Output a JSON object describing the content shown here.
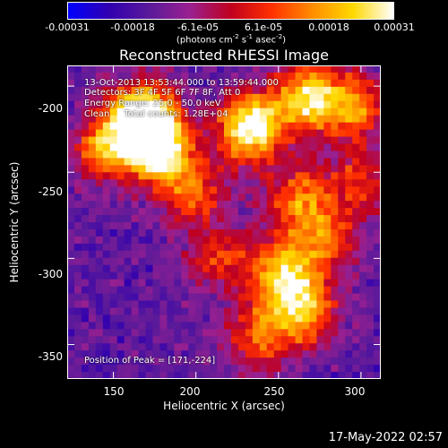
{
  "colorbar": {
    "tick_labels": [
      "-0.00031",
      "-0.00018",
      "-6.1e-05",
      "6.1e-05",
      "0.00018",
      "0.00031"
    ],
    "unit_prefix": "(photons cm",
    "unit_exp1": "-2",
    "unit_mid1": " s",
    "unit_exp2": "-1",
    "unit_mid2": " asec",
    "unit_exp3": "-2",
    "unit_suffix": ")",
    "range": [
      -0.00031,
      0.00031
    ]
  },
  "info_lines": {
    "time_range": "13-Oct-2013 13:53:44.000 to 13:59:44.000",
    "detectors": "Detectors: 3F 4F 5F 6F 7F 8F, Att 0",
    "energy": "Energy Range: 25.0 - 50.0 keV",
    "clean": "Clean     Total counts: 1.28E+04",
    "peak": "Position of Peak = [171,-224]"
  },
  "chart_data": {
    "type": "heatmap",
    "title": "Reconstructed RHESSI Image",
    "xlabel": "Heliocentric X (arcsec)",
    "ylabel": "Heliocentric Y (arcsec)",
    "xlim": [
      122,
      312
    ],
    "ylim": [
      -370,
      -188
    ],
    "xticks": [
      "150",
      "200",
      "250",
      "300"
    ],
    "yticks": [
      "-200",
      "-250",
      "-300",
      "-350"
    ],
    "peak_position": [
      171,
      -224
    ],
    "colormap": [
      "#0000ff",
      "#3000b0",
      "#5a1a9a",
      "#9a2090",
      "#c0001f",
      "#ff3000",
      "#ff8c00",
      "#ffd800",
      "#ffffff"
    ],
    "hotspots": [
      {
        "x": 168,
        "y": -218,
        "amp": 1.0
      },
      {
        "x": 178,
        "y": -238,
        "amp": 0.85
      },
      {
        "x": 233,
        "y": -224,
        "amp": 0.95
      },
      {
        "x": 268,
        "y": -207,
        "amp": 0.8
      },
      {
        "x": 296,
        "y": -212,
        "amp": 0.55
      },
      {
        "x": 145,
        "y": -235,
        "amp": 0.6
      },
      {
        "x": 262,
        "y": -266,
        "amp": 0.55
      },
      {
        "x": 252,
        "y": -307,
        "amp": 0.65
      },
      {
        "x": 265,
        "y": -330,
        "amp": 0.7
      },
      {
        "x": 238,
        "y": -345,
        "amp": 0.5
      },
      {
        "x": 214,
        "y": -300,
        "amp": 0.4
      },
      {
        "x": 198,
        "y": -262,
        "amp": 0.45
      },
      {
        "x": 300,
        "y": -255,
        "amp": 0.4
      },
      {
        "x": 280,
        "y": -290,
        "amp": 0.45
      }
    ]
  },
  "timestamp": "17-May-2022 02:57"
}
